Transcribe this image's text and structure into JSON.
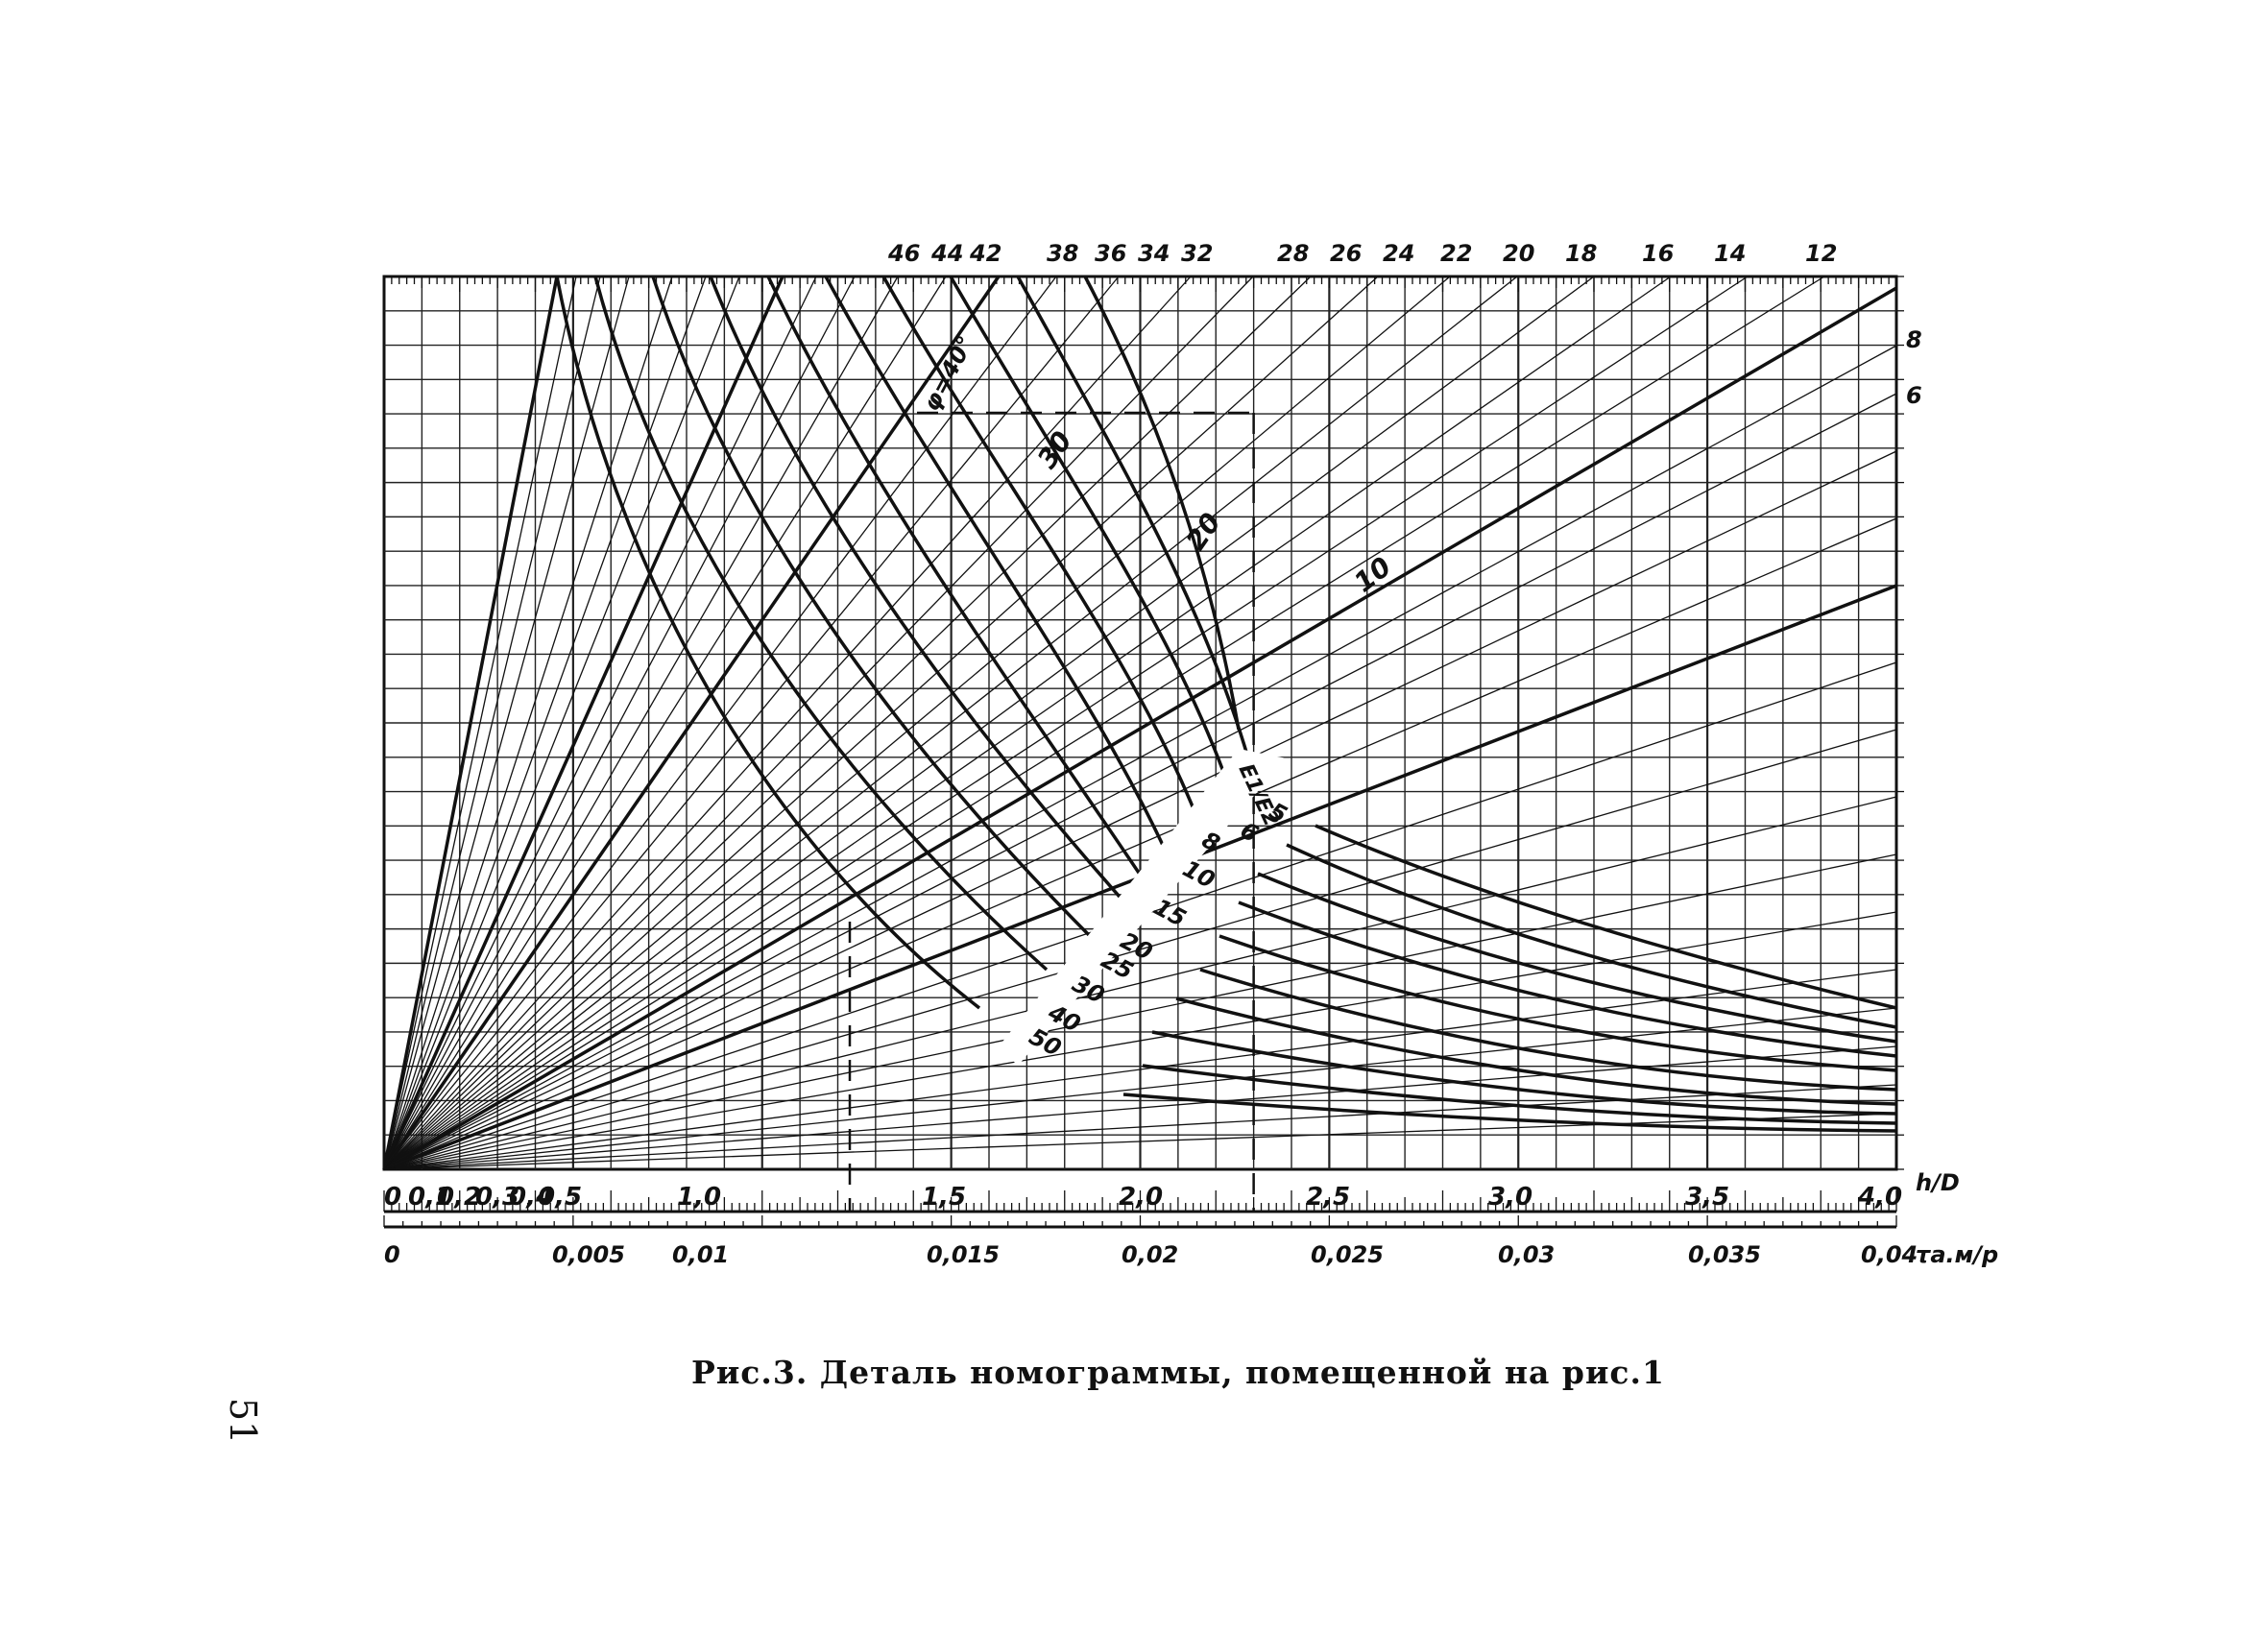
{
  "caption": "Рис.3. Деталь номограммы, помещенной на рис.1",
  "page_number": "51",
  "chart_data": {
    "type": "line",
    "title": "",
    "x_axis_primary": {
      "label": "h/D",
      "range": [
        0,
        4.0
      ],
      "tick_labels": [
        "0",
        "0,1",
        "0,2",
        "0,3",
        "0,4",
        "0,5",
        "1,0",
        "1,5",
        "2,0",
        "2,5",
        "3,0",
        "3,5",
        "4,0"
      ]
    },
    "x_axis_secondary": {
      "label": "τа.м/p",
      "range": [
        0,
        0.04
      ],
      "tick_labels": [
        "0",
        "0,005",
        "0,01",
        "0,015",
        "0,02",
        "0,025",
        "0,03",
        "0,035",
        "0,04"
      ]
    },
    "phi_scale": {
      "tick_labels": [
        "46",
        "44",
        "42",
        "38",
        "36",
        "34",
        "32",
        "28",
        "26",
        "24",
        "22",
        "20",
        "18",
        "16",
        "14",
        "12"
      ],
      "right_labels": [
        "8",
        "6"
      ],
      "line_labels": [
        "φ=40°",
        "30",
        "20",
        "10"
      ]
    },
    "e_ratio_curves": {
      "label": "E1/E2",
      "values": [
        "5",
        "6",
        "8",
        "10",
        "15",
        "20",
        "25",
        "30",
        "40",
        "50"
      ]
    },
    "grid": true,
    "example_reading": {
      "h_over_d": 2.3,
      "tau_over_p_start": 0.013
    }
  }
}
